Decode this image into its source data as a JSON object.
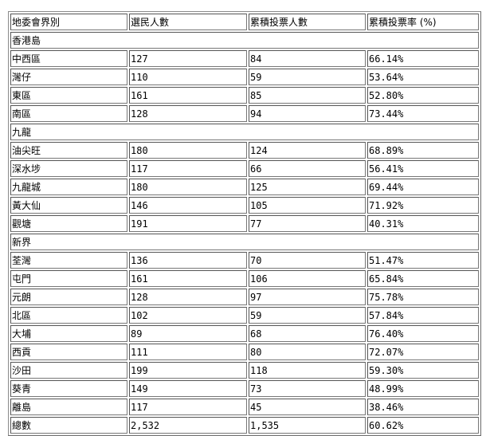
{
  "headers": [
    "地委會界別",
    "選民人數",
    "累積投票人數",
    "累積投票率 (%)"
  ],
  "groups": [
    {
      "name": "香港島",
      "rows": [
        [
          "中西區",
          "127",
          "84",
          "66.14%"
        ],
        [
          "灣仔",
          "110",
          "59",
          "53.64%"
        ],
        [
          "東區",
          "161",
          "85",
          "52.80%"
        ],
        [
          "南區",
          "128",
          "94",
          "73.44%"
        ]
      ]
    },
    {
      "name": "九龍",
      "rows": [
        [
          "油尖旺",
          "180",
          "124",
          "68.89%"
        ],
        [
          "深水埗",
          "117",
          "66",
          "56.41%"
        ],
        [
          "九龍城",
          "180",
          "125",
          "69.44%"
        ],
        [
          "黃大仙",
          "146",
          "105",
          "71.92%"
        ],
        [
          "觀塘",
          "191",
          "77",
          "40.31%"
        ]
      ]
    },
    {
      "name": "新界",
      "rows": [
        [
          "荃灣",
          "136",
          "70",
          "51.47%"
        ],
        [
          "屯門",
          "161",
          "106",
          "65.84%"
        ],
        [
          "元朗",
          "128",
          "97",
          "75.78%"
        ],
        [
          "北區",
          "102",
          "59",
          "57.84%"
        ],
        [
          "大埔",
          "89",
          "68",
          "76.40%"
        ],
        [
          "西貢",
          "111",
          "80",
          "72.07%"
        ],
        [
          "沙田",
          "199",
          "118",
          "59.30%"
        ],
        [
          "葵青",
          "149",
          "73",
          "48.99%"
        ],
        [
          "離島",
          "117",
          "45",
          "38.46%"
        ]
      ]
    }
  ],
  "total": [
    "總數",
    "2,532",
    "1,535",
    "60.62%"
  ]
}
